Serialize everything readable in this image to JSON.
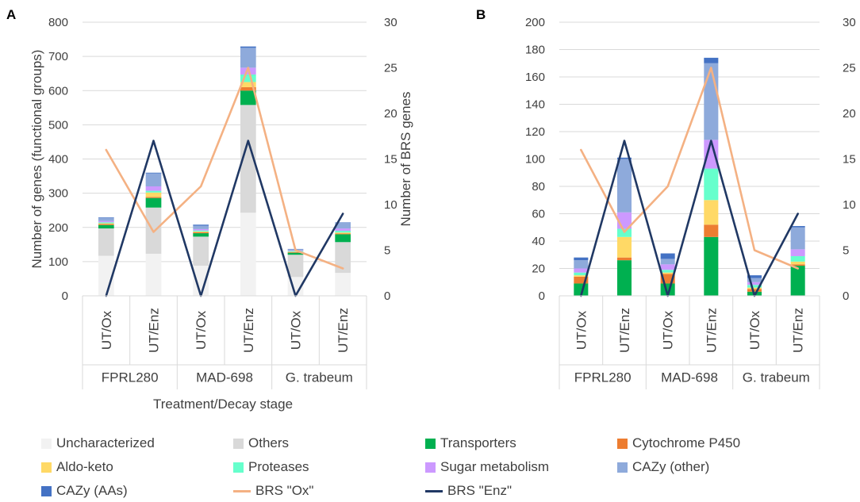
{
  "panels": [
    {
      "letter": "A"
    },
    {
      "letter": "B"
    }
  ],
  "colors": {
    "Uncharacterized": "#f2f2f2",
    "Others": "#d9d9d9",
    "Transporters": "#00b050",
    "Cytochrome P450": "#ed7d31",
    "Aldo-keto": "#ffd966",
    "Proteases": "#66ffcc",
    "Sugar metabolism": "#cc99ff",
    "CAZy (other)": "#8eaadb",
    "CAZy (AAs)": "#4472c4",
    "BRS \"Ox\"": "#f4b183",
    "BRS \"Enz\"": "#203864",
    "grid": "#d9d9d9",
    "text": "#404040"
  },
  "legend": {
    "items": [
      {
        "label": "Uncharacterized",
        "kind": "box"
      },
      {
        "label": "Others",
        "kind": "box"
      },
      {
        "label": "Transporters",
        "kind": "box"
      },
      {
        "label": "Cytochrome P450",
        "kind": "box"
      },
      {
        "label": "Aldo-keto",
        "kind": "box"
      },
      {
        "label": "Proteases",
        "kind": "box"
      },
      {
        "label": "Sugar metabolism",
        "kind": "box"
      },
      {
        "label": "CAZy (other)",
        "kind": "box"
      },
      {
        "label": "CAZy (AAs)",
        "kind": "box"
      },
      {
        "label": "BRS \"Ox\"",
        "kind": "line"
      },
      {
        "label": "BRS \"Enz\"",
        "kind": "line"
      }
    ]
  },
  "chart_data": [
    {
      "panel": "A",
      "type": "bar",
      "stacked": true,
      "categories": [
        "UT/Ox",
        "UT/Enz",
        "UT/Ox",
        "UT/Enz",
        "UT/Ox",
        "UT/Enz"
      ],
      "groups": [
        "FPRL280",
        "MAD-698",
        "G. trabeum"
      ],
      "xlabel": "Treatment/Decay stage",
      "ylabel": "Number of genes (functional groups)",
      "ylim": [
        0,
        800
      ],
      "yticks": [
        0,
        100,
        200,
        300,
        400,
        500,
        600,
        700,
        800
      ],
      "y2label": "Number of BRS genes",
      "y2lim": [
        0,
        30
      ],
      "y2ticks": [
        0,
        5,
        10,
        15,
        20,
        25,
        30
      ],
      "series": [
        {
          "name": "Uncharacterized",
          "values": [
            117,
            123,
            88,
            243,
            55,
            67
          ]
        },
        {
          "name": "Others",
          "values": [
            80,
            135,
            85,
            315,
            65,
            90
          ]
        },
        {
          "name": "Transporters",
          "values": [
            10,
            28,
            10,
            42,
            6,
            23
          ]
        },
        {
          "name": "Cytochrome P450",
          "values": [
            3,
            3,
            3,
            10,
            2,
            2
          ]
        },
        {
          "name": "Aldo-keto",
          "values": [
            2,
            13,
            2,
            15,
            1,
            3
          ]
        },
        {
          "name": "Proteases",
          "values": [
            3,
            5,
            3,
            22,
            2,
            5
          ]
        },
        {
          "name": "Sugar metabolism",
          "values": [
            4,
            13,
            4,
            20,
            2,
            7
          ]
        },
        {
          "name": "CAZy (other)",
          "values": [
            8,
            38,
            10,
            58,
            3,
            17
          ]
        },
        {
          "name": "CAZy (AAs)",
          "values": [
            2,
            2,
            3,
            4,
            1,
            1
          ]
        }
      ],
      "lines": [
        {
          "name": "BRS \"Ox\"",
          "axis": "right",
          "values": [
            16,
            7,
            12,
            25,
            5,
            3
          ]
        },
        {
          "name": "BRS \"Enz\"",
          "axis": "right",
          "values": [
            0,
            17,
            0,
            17,
            0,
            9
          ]
        }
      ]
    },
    {
      "panel": "B",
      "type": "bar",
      "stacked": true,
      "categories": [
        "UT/Ox",
        "UT/Enz",
        "UT/Ox",
        "UT/Enz",
        "UT/Ox",
        "UT/Enz"
      ],
      "groups": [
        "FPRL280",
        "MAD-698",
        "G. trabeum"
      ],
      "xlabel": "",
      "ylabel": "",
      "ylim": [
        0,
        200
      ],
      "yticks": [
        0,
        20,
        40,
        60,
        80,
        100,
        120,
        140,
        160,
        180,
        200
      ],
      "y2label": "",
      "y2lim": [
        0,
        30
      ],
      "y2ticks": [
        0,
        5,
        10,
        15,
        20,
        25,
        30
      ],
      "series": [
        {
          "name": "Transporters",
          "values": [
            9,
            26,
            9,
            43,
            3,
            22
          ]
        },
        {
          "name": "Cytochrome P450",
          "values": [
            5,
            2,
            7,
            9,
            2,
            1
          ]
        },
        {
          "name": "Aldo-keto",
          "values": [
            1,
            15,
            1,
            18,
            1,
            2
          ]
        },
        {
          "name": "Proteases",
          "values": [
            2,
            6,
            2,
            23,
            2,
            4
          ]
        },
        {
          "name": "Sugar metabolism",
          "values": [
            3,
            12,
            4,
            21,
            2,
            5
          ]
        },
        {
          "name": "CAZy (other)",
          "values": [
            6,
            39,
            4,
            56,
            3,
            16
          ]
        },
        {
          "name": "CAZy (AAs)",
          "values": [
            2,
            1,
            4,
            4,
            2,
            1
          ]
        }
      ],
      "lines": [
        {
          "name": "BRS \"Ox\"",
          "axis": "right",
          "values": [
            16,
            7,
            12,
            25,
            5,
            3
          ]
        },
        {
          "name": "BRS \"Enz\"",
          "axis": "right",
          "values": [
            0,
            17,
            0,
            17,
            0,
            9
          ]
        }
      ]
    }
  ]
}
